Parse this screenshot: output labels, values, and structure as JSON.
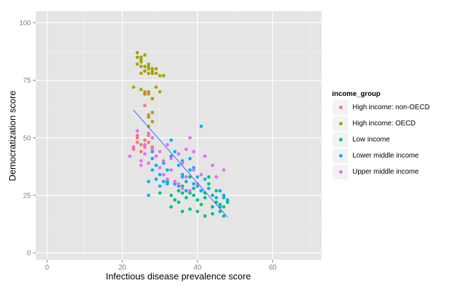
{
  "chart_data": {
    "type": "scatter",
    "title": "",
    "xlabel": "Infectious disease prevalence score",
    "ylabel": "Democratization score",
    "xlim": [
      -3,
      73
    ],
    "ylim": [
      -3,
      105
    ],
    "xticks": [
      0,
      20,
      40,
      60
    ],
    "yticks": [
      0,
      25,
      50,
      75,
      100
    ],
    "grid": true,
    "legend_title": "income_group",
    "legend_position": "right",
    "trendline": {
      "type": "linear",
      "color": "#3366ff",
      "x": [
        23,
        48
      ],
      "y": [
        62,
        15.5
      ]
    },
    "series": [
      {
        "name": "High income: non-OECD",
        "color": "#f8766d",
        "x": [
          23,
          24,
          24,
          25,
          26,
          26,
          27,
          27,
          28,
          25,
          24,
          28,
          27,
          26,
          26,
          27
        ],
        "y": [
          45,
          48,
          50,
          47,
          46,
          49,
          48,
          51,
          46,
          44,
          51,
          44,
          60,
          64,
          70,
          69
        ]
      },
      {
        "name": "High income: OECD",
        "color": "#a3a500",
        "x": [
          24,
          24,
          25,
          25,
          25,
          25,
          26,
          26,
          27,
          27,
          28,
          28,
          29,
          24,
          25,
          26,
          26,
          27,
          27,
          28,
          29,
          30,
          31,
          23,
          25,
          26,
          27,
          28,
          29,
          30,
          27,
          28,
          28,
          27
        ],
        "y": [
          87,
          82,
          85,
          83,
          81,
          78,
          81,
          79,
          78,
          82,
          80,
          78,
          80,
          85,
          84,
          86,
          79,
          81,
          80,
          79,
          78,
          77,
          77,
          72,
          71,
          69,
          70,
          67,
          72,
          70,
          59,
          61,
          57,
          55
        ]
      },
      {
        "name": "Low income",
        "color": "#00bf7d",
        "x": [
          30,
          33,
          33,
          34,
          34,
          35,
          35,
          36,
          36,
          37,
          37,
          38,
          38,
          39,
          39,
          40,
          40,
          41,
          41,
          42,
          42,
          43,
          44,
          44,
          45,
          45,
          46,
          46,
          47,
          47,
          48,
          32,
          36,
          38,
          42,
          43,
          44,
          47
        ],
        "y": [
          26,
          20,
          25,
          23,
          30,
          27,
          22,
          26,
          18,
          24,
          27,
          26,
          19,
          25,
          28,
          23,
          18,
          27,
          21,
          24,
          16,
          30,
          20,
          25,
          22,
          27,
          21,
          18,
          24,
          16,
          22,
          31,
          29,
          33,
          26,
          33,
          17,
          20
        ]
      },
      {
        "name": "Lower middle income",
        "color": "#00b0f6",
        "x": [
          27,
          27,
          28,
          28,
          29,
          29,
          30,
          30,
          31,
          31,
          32,
          32,
          33,
          34,
          34,
          35,
          35,
          36,
          36,
          37,
          37,
          38,
          38,
          39,
          39,
          40,
          40,
          41,
          42,
          43,
          45,
          46,
          46,
          47,
          48,
          28,
          41,
          33,
          36
        ],
        "y": [
          31,
          25,
          41,
          36,
          32,
          38,
          34,
          29,
          39,
          31,
          36,
          30,
          49,
          44,
          30,
          38,
          29,
          34,
          40,
          31,
          27,
          36,
          41,
          30,
          37,
          29,
          33,
          27,
          32,
          28,
          24,
          27,
          20,
          25,
          23,
          44,
          55,
          42,
          33
        ]
      },
      {
        "name": "Upper middle income",
        "color": "#e76bf3",
        "x": [
          22,
          23,
          24,
          25,
          25,
          26,
          26,
          27,
          27,
          28,
          28,
          29,
          30,
          30,
          31,
          31,
          32,
          32,
          33,
          33,
          34,
          35,
          35,
          36,
          36,
          37,
          37,
          38,
          38,
          39,
          39,
          40,
          41,
          42,
          44,
          45,
          47
        ],
        "y": [
          42,
          46,
          53,
          38,
          40,
          43,
          47,
          52,
          39,
          45,
          50,
          42,
          37,
          44,
          34,
          40,
          47,
          32,
          41,
          36,
          31,
          43,
          30,
          39,
          28,
          33,
          45,
          50,
          27,
          36,
          44,
          30,
          34,
          42,
          38,
          33,
          36
        ]
      }
    ]
  }
}
